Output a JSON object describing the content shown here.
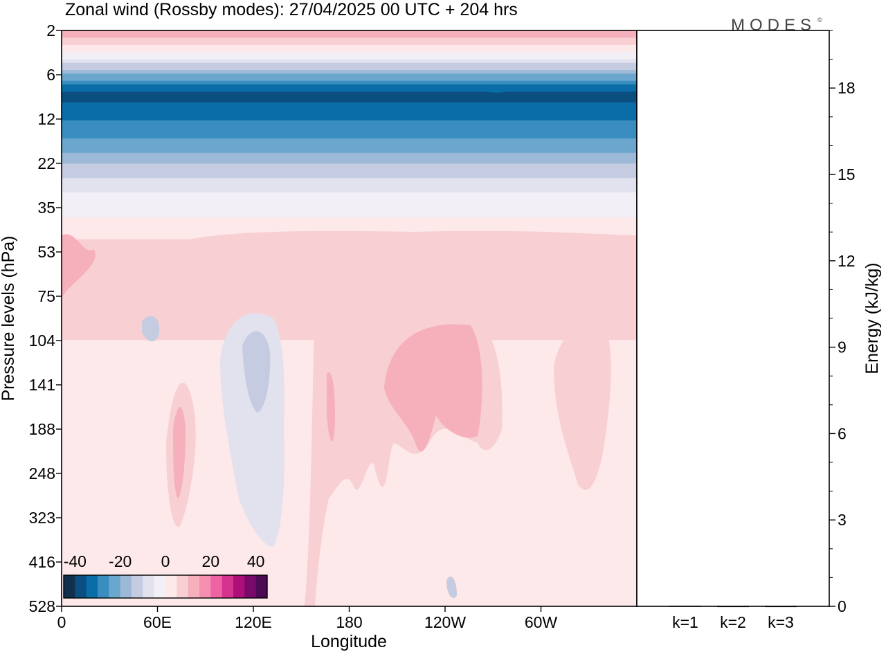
{
  "title": "Zonal wind (Rossby modes):  27/04/2025  00 UTC  + 204 hrs",
  "logo": "MODES",
  "logo_mark": "©",
  "chart_data": [
    {
      "type": "heatmap",
      "title": "Zonal wind (Rossby modes):  27/04/2025  00 UTC  + 204 hrs",
      "xlabel": "Longitude",
      "ylabel": "Pressure levels (hPa)",
      "x_ticks": [
        "0",
        "60E",
        "120E",
        "180",
        "120W",
        "60W"
      ],
      "x_tick_values": [
        0,
        60,
        120,
        180,
        240,
        300
      ],
      "xlim": [
        0,
        360
      ],
      "y_ticks": [
        "2",
        "6",
        "12",
        "22",
        "35",
        "53",
        "75",
        "104",
        "141",
        "188",
        "248",
        "323",
        "416",
        "528"
      ],
      "y_scale": "log",
      "y_inverted": false,
      "colorbar": {
        "tick_labels": [
          "-40",
          "-20",
          "0",
          "20",
          "40"
        ],
        "tick_values": [
          -40,
          -20,
          0,
          20,
          40
        ],
        "levels": [
          -45,
          -40,
          -35,
          -30,
          -25,
          -20,
          -15,
          -10,
          -5,
          0,
          5,
          10,
          15,
          20,
          25,
          30,
          35,
          40,
          45
        ],
        "colors": [
          "#11304d",
          "#0a4f80",
          "#0b6da8",
          "#3a8dc0",
          "#6aa6cd",
          "#9cbad8",
          "#c5cbe0",
          "#e2e1ee",
          "#f2eff6",
          "#fde8ea",
          "#f8cfd2",
          "#f5b0bc",
          "#f48fb0",
          "#ee63a3",
          "#d63390",
          "#ac0f78",
          "#7a0a6a",
          "#4d0a55"
        ],
        "position": "bottom-left inset"
      },
      "bands": [
        {
          "level": "2",
          "value": 15
        },
        {
          "level": "4",
          "value": -5
        },
        {
          "level": "6",
          "value": -20
        },
        {
          "level": "8",
          "value": -38
        },
        {
          "level": "12",
          "value": -30
        },
        {
          "level": "16",
          "value": -25
        },
        {
          "level": "22",
          "value": -15
        },
        {
          "level": "30",
          "value": -5
        },
        {
          "level": "38",
          "value": 0
        },
        {
          "level": "53",
          "value": 8
        },
        {
          "level": "104",
          "value": 5
        },
        {
          "level": "528",
          "value": 0
        }
      ]
    },
    {
      "type": "bar",
      "categories": [
        "k=1",
        "k=2",
        "k=3"
      ],
      "values": [
        0.02,
        0.01,
        0.01
      ],
      "ylabel": "Energy (kJ/kg)",
      "ylim": [
        0,
        20
      ],
      "y_ticks": [
        "0",
        "3",
        "6",
        "9",
        "12",
        "15",
        "18"
      ],
      "y_tick_values": [
        0,
        3,
        6,
        9,
        12,
        15,
        18
      ],
      "axis_side": "right"
    }
  ]
}
